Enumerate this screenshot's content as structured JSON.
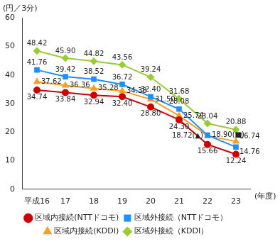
{
  "chart_data": {
    "type": "line",
    "ylabel": "(円／3分)",
    "xlabel": "(年度)",
    "categories": [
      "平成16",
      "17",
      "18",
      "19",
      "20",
      "21",
      "22",
      "23"
    ],
    "series": [
      {
        "name": "区域内接続(NTTドコモ)",
        "color": "#cc0000",
        "marker": "circle",
        "values": [
          34.74,
          33.84,
          32.94,
          32.4,
          28.8,
          24.3,
          15.66,
          12.24
        ],
        "value_labels": [
          "34.74",
          "33.84",
          "32.94",
          "32.40",
          "28.80",
          "24.30",
          "15.66",
          "12.24"
        ]
      },
      {
        "name": "区域外接続（NTTドコモ）",
        "color": "#1e8fff",
        "marker": "square",
        "values": [
          41.76,
          39.42,
          38.52,
          36.72,
          32.4,
          28.08,
          18.9,
          14.76
        ],
        "value_labels": [
          "41.76",
          "39.42",
          "38.52",
          "36.72",
          "32.40",
          "28.08",
          "18.90(■)",
          "14.76"
        ]
      },
      {
        "name": "区域内接続(KDDI)",
        "color": "#f5a020",
        "marker": "triangle",
        "values": [
          37.62,
          36.36,
          35.28,
          34.38,
          31.5,
          25.74,
          18.72,
          16.74
        ],
        "value_labels": [
          "37.62",
          "36.36",
          "35.28",
          "34.38",
          "31.50",
          "25.74",
          "18.72(▲)",
          "16.74"
        ]
      },
      {
        "name": "区域外接続（KDDI）",
        "color": "#99cc33",
        "marker": "diamond",
        "values": [
          48.42,
          45.9,
          44.82,
          43.56,
          39.24,
          31.68,
          23.04,
          20.88
        ],
        "value_labels": [
          "48.42",
          "45.90",
          "44.82",
          "43.56",
          "39.24",
          "31.68",
          "23.04",
          "20.88"
        ]
      }
    ],
    "ylim": [
      0,
      60
    ],
    "yticks": [
      0,
      10,
      20,
      30,
      40,
      50,
      60
    ],
    "grid": false,
    "legend": "bottom",
    "data_labels": true
  }
}
